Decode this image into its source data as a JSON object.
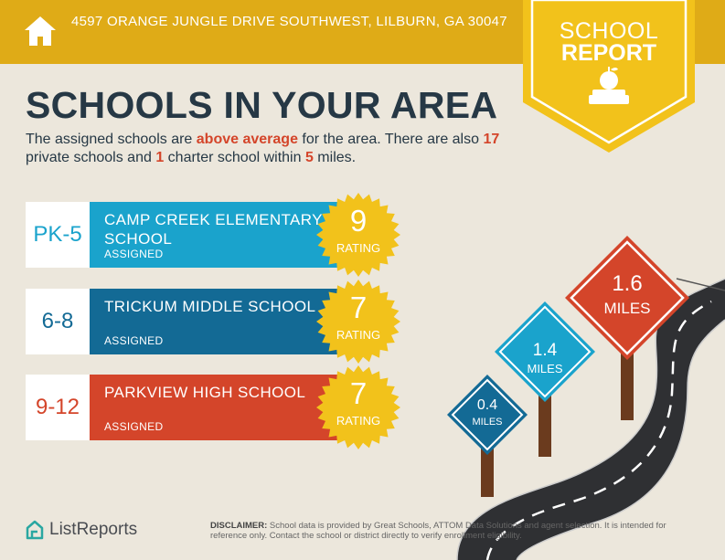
{
  "header": {
    "address": "4597 ORANGE JUNGLE DRIVE SOUTHWEST, LILBURN, GA 30047",
    "badge_line1": "SCHOOL",
    "badge_line2": "REPORT"
  },
  "title": "SCHOOLS IN YOUR AREA",
  "intro": {
    "p1": "The assigned schools are ",
    "h1": "above average",
    "p2": " for the area. There are also ",
    "h2": "17",
    "p3": " private schools and ",
    "h3": "1",
    "p4": " charter school within ",
    "h4": "5",
    "p5": " miles."
  },
  "schools": [
    {
      "grades": "PK-5",
      "name": "CAMP CREEK ELEMENTARY SCHOOL",
      "status": "ASSIGNED",
      "rating": "9",
      "rating_label": "RATING",
      "color": "#1aa3cc"
    },
    {
      "grades": "6-8",
      "name": "TRICKUM MIDDLE SCHOOL",
      "status": "ASSIGNED",
      "rating": "7",
      "rating_label": "RATING",
      "color": "#136a95"
    },
    {
      "grades": "9-12",
      "name": "PARKVIEW HIGH SCHOOL",
      "status": "ASSIGNED",
      "rating": "7",
      "rating_label": "RATING",
      "color": "#d4452a"
    }
  ],
  "signs": [
    {
      "value": "0.4",
      "unit": "MILES",
      "color": "#136a95"
    },
    {
      "value": "1.4",
      "unit": "MILES",
      "color": "#1aa3cc"
    },
    {
      "value": "1.6",
      "unit": "MILES",
      "color": "#d4452a"
    }
  ],
  "footer": {
    "logo": "ListReports",
    "disclaimer_label": "DISCLAIMER:",
    "disclaimer": " School data is provided by Great Schools, ATTOM Data Solutions and agent selection. It is intended for reference only. Contact the school or district directly to verify enrollment eligibility."
  },
  "colors": {
    "gold": "#dfab17",
    "seal": "#f2c21b",
    "navy": "#263845",
    "accent": "#d4452a"
  }
}
